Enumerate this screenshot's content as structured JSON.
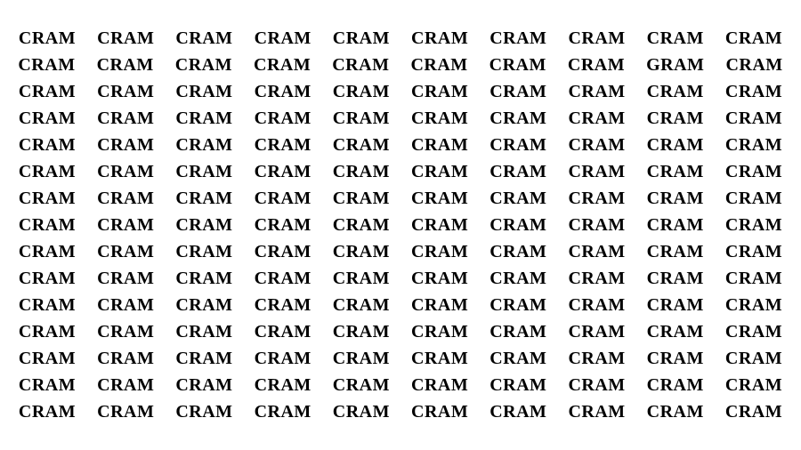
{
  "puzzle": {
    "type": "word-search",
    "rows": 15,
    "cols": 10,
    "background_color": "#ffffff",
    "text_color": "#000000",
    "font_size": 20,
    "font_weight": "bold",
    "font_family": "Georgia, serif",
    "row_gap": 7,
    "col_gap": 24,
    "default_word": "CRAM",
    "odd_word": "GRAM",
    "odd_position": {
      "row": 1,
      "col": 8
    },
    "grid": [
      [
        "CRAM",
        "CRAM",
        "CRAM",
        "CRAM",
        "CRAM",
        "CRAM",
        "CRAM",
        "CRAM",
        "CRAM",
        "CRAM"
      ],
      [
        "CRAM",
        "CRAM",
        "CRAM",
        "CRAM",
        "CRAM",
        "CRAM",
        "CRAM",
        "CRAM",
        "GRAM",
        "CRAM"
      ],
      [
        "CRAM",
        "CRAM",
        "CRAM",
        "CRAM",
        "CRAM",
        "CRAM",
        "CRAM",
        "CRAM",
        "CRAM",
        "CRAM"
      ],
      [
        "CRAM",
        "CRAM",
        "CRAM",
        "CRAM",
        "CRAM",
        "CRAM",
        "CRAM",
        "CRAM",
        "CRAM",
        "CRAM"
      ],
      [
        "CRAM",
        "CRAM",
        "CRAM",
        "CRAM",
        "CRAM",
        "CRAM",
        "CRAM",
        "CRAM",
        "CRAM",
        "CRAM"
      ],
      [
        "CRAM",
        "CRAM",
        "CRAM",
        "CRAM",
        "CRAM",
        "CRAM",
        "CRAM",
        "CRAM",
        "CRAM",
        "CRAM"
      ],
      [
        "CRAM",
        "CRAM",
        "CRAM",
        "CRAM",
        "CRAM",
        "CRAM",
        "CRAM",
        "CRAM",
        "CRAM",
        "CRAM"
      ],
      [
        "CRAM",
        "CRAM",
        "CRAM",
        "CRAM",
        "CRAM",
        "CRAM",
        "CRAM",
        "CRAM",
        "CRAM",
        "CRAM"
      ],
      [
        "CRAM",
        "CRAM",
        "CRAM",
        "CRAM",
        "CRAM",
        "CRAM",
        "CRAM",
        "CRAM",
        "CRAM",
        "CRAM"
      ],
      [
        "CRAM",
        "CRAM",
        "CRAM",
        "CRAM",
        "CRAM",
        "CRAM",
        "CRAM",
        "CRAM",
        "CRAM",
        "CRAM"
      ],
      [
        "CRAM",
        "CRAM",
        "CRAM",
        "CRAM",
        "CRAM",
        "CRAM",
        "CRAM",
        "CRAM",
        "CRAM",
        "CRAM"
      ],
      [
        "CRAM",
        "CRAM",
        "CRAM",
        "CRAM",
        "CRAM",
        "CRAM",
        "CRAM",
        "CRAM",
        "CRAM",
        "CRAM"
      ],
      [
        "CRAM",
        "CRAM",
        "CRAM",
        "CRAM",
        "CRAM",
        "CRAM",
        "CRAM",
        "CRAM",
        "CRAM",
        "CRAM"
      ],
      [
        "CRAM",
        "CRAM",
        "CRAM",
        "CRAM",
        "CRAM",
        "CRAM",
        "CRAM",
        "CRAM",
        "CRAM",
        "CRAM"
      ],
      [
        "CRAM",
        "CRAM",
        "CRAM",
        "CRAM",
        "CRAM",
        "CRAM",
        "CRAM",
        "CRAM",
        "CRAM",
        "CRAM"
      ]
    ]
  }
}
